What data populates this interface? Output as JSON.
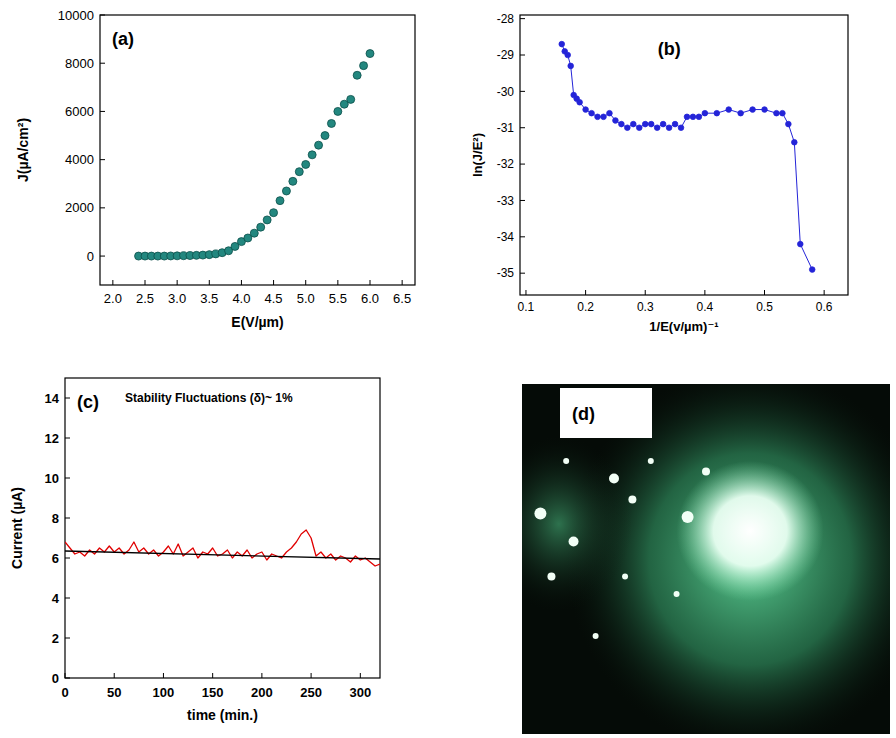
{
  "chart_data": [
    {
      "type": "scatter",
      "panel_label": "(a)",
      "x_label": "E(V/µm)",
      "y_label": "J(µA/cm²)",
      "xlim": [
        1.8,
        6.7
      ],
      "ylim": [
        -1200,
        10000
      ],
      "xticks": [
        {
          "value": 2,
          "label": "2.0"
        },
        2.5,
        {
          "value": 3,
          "label": "3.0"
        },
        3.5,
        {
          "value": 4,
          "label": "4.0"
        },
        4.5,
        {
          "value": 5,
          "label": "5.0"
        },
        5.5,
        {
          "value": 6,
          "label": "6.0"
        },
        6.5
      ],
      "yticks": [
        0,
        2000,
        4000,
        6000,
        8000,
        10000
      ],
      "x": [
        2.4,
        2.5,
        2.6,
        2.7,
        2.8,
        2.9,
        3.0,
        3.1,
        3.2,
        3.3,
        3.4,
        3.5,
        3.6,
        3.7,
        3.8,
        3.9,
        4.0,
        4.1,
        4.2,
        4.3,
        4.4,
        4.5,
        4.6,
        4.7,
        4.8,
        4.9,
        5.0,
        5.1,
        5.2,
        5.3,
        5.4,
        5.5,
        5.6,
        5.7,
        5.8,
        5.9,
        6.0
      ],
      "series": [
        {
          "color": "#23877f",
          "marker": "circle",
          "values": [
            0,
            0,
            0,
            0,
            0,
            5,
            10,
            15,
            20,
            30,
            40,
            60,
            90,
            140,
            220,
            400,
            600,
            750,
            950,
            1200,
            1500,
            1800,
            2300,
            2700,
            3100,
            3500,
            3800,
            4200,
            4600,
            5000,
            5500,
            6000,
            6300,
            6500,
            7500,
            7900,
            8400
          ]
        }
      ]
    },
    {
      "type": "line",
      "panel_label": "(b)",
      "x_label": "1/E(v/µm)⁻¹",
      "y_label": "ln(J/E²)",
      "xlim": [
        0.09,
        0.64
      ],
      "ylim": [
        -35.6,
        -27.9
      ],
      "xticks": [
        0.1,
        0.2,
        0.3,
        0.4,
        0.5,
        0.6
      ],
      "yticks": [
        -28,
        -29,
        -30,
        -31,
        -32,
        -33,
        -34,
        -35
      ],
      "x": [
        0.16,
        0.165,
        0.17,
        0.175,
        0.18,
        0.185,
        0.19,
        0.2,
        0.21,
        0.22,
        0.23,
        0.24,
        0.25,
        0.26,
        0.27,
        0.28,
        0.29,
        0.3,
        0.31,
        0.32,
        0.33,
        0.34,
        0.35,
        0.36,
        0.37,
        0.38,
        0.39,
        0.4,
        0.42,
        0.44,
        0.46,
        0.48,
        0.5,
        0.52,
        0.53,
        0.54,
        0.55,
        0.56,
        0.58
      ],
      "series": [
        {
          "color": "#2424d8",
          "marker": "circle",
          "values": [
            -28.7,
            -28.9,
            -29.0,
            -29.3,
            -30.1,
            -30.2,
            -30.3,
            -30.5,
            -30.6,
            -30.7,
            -30.7,
            -30.6,
            -30.8,
            -30.9,
            -31.0,
            -30.9,
            -31.0,
            -30.9,
            -30.9,
            -31.0,
            -30.9,
            -31.0,
            -30.9,
            -31.0,
            -30.7,
            -30.7,
            -30.7,
            -30.6,
            -30.6,
            -30.5,
            -30.6,
            -30.5,
            -30.5,
            -30.6,
            -30.6,
            -30.9,
            -31.4,
            -34.2,
            -34.9
          ]
        }
      ]
    },
    {
      "type": "line",
      "panel_label": "(c)",
      "title": "Stability Fluctuations (δ)~ 1%",
      "x_label": "time (min.)",
      "y_label": "Current (µA)",
      "xlim": [
        0,
        320
      ],
      "ylim": [
        0,
        15
      ],
      "xticks": [
        0,
        50,
        100,
        150,
        200,
        250,
        300
      ],
      "yticks": [
        0,
        2,
        4,
        6,
        8,
        10,
        12,
        14
      ],
      "series": [
        {
          "color": "#e00000",
          "x": [
            0,
            5,
            10,
            15,
            20,
            25,
            30,
            35,
            40,
            45,
            50,
            55,
            60,
            65,
            70,
            75,
            80,
            85,
            90,
            95,
            100,
            105,
            110,
            115,
            120,
            125,
            130,
            135,
            140,
            145,
            150,
            155,
            160,
            165,
            170,
            175,
            180,
            185,
            190,
            195,
            200,
            205,
            210,
            215,
            220,
            225,
            230,
            235,
            240,
            245,
            250,
            255,
            260,
            265,
            270,
            275,
            280,
            285,
            290,
            295,
            300,
            305,
            310,
            315,
            320
          ],
          "values": [
            6.8,
            6.5,
            6.2,
            6.3,
            6.1,
            6.4,
            6.2,
            6.5,
            6.3,
            6.6,
            6.3,
            6.5,
            6.2,
            6.4,
            6.8,
            6.3,
            6.5,
            6.2,
            6.4,
            6.1,
            6.3,
            6.6,
            6.2,
            6.7,
            6.1,
            6.3,
            6.5,
            6.0,
            6.3,
            6.2,
            6.5,
            6.1,
            6.2,
            6.4,
            6.0,
            6.3,
            6.1,
            6.4,
            6.0,
            6.2,
            6.3,
            5.9,
            6.2,
            6.1,
            6.0,
            6.3,
            6.5,
            6.8,
            7.2,
            7.4,
            7.0,
            6.1,
            6.3,
            6.0,
            6.2,
            5.9,
            6.1,
            6.0,
            5.8,
            6.1,
            5.9,
            6.0,
            5.8,
            5.6,
            5.7
          ]
        },
        {
          "color": "#000000",
          "x": [
            0,
            320
          ],
          "values": [
            6.35,
            5.95
          ]
        }
      ]
    },
    {
      "type": "image",
      "panel_label": "(d)"
    }
  ]
}
